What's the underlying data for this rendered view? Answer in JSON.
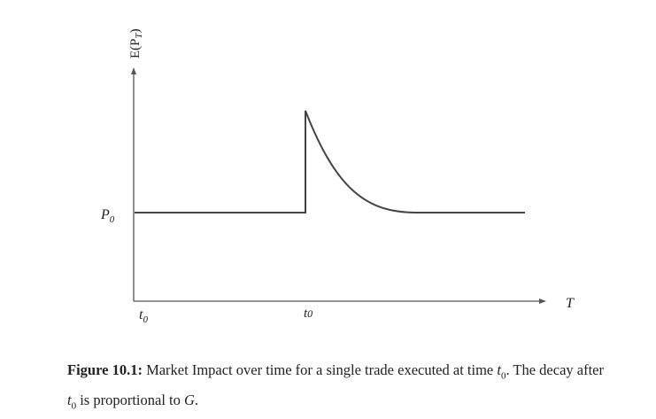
{
  "diagram": {
    "y_axis_label": "E(P",
    "y_axis_label_sub": "T",
    "y_axis_label_close": ")",
    "x_axis_label": "T",
    "p0_label": "P",
    "p0_sub": "0",
    "t0_left_label": "t",
    "t0_left_sub": "0",
    "t0_mid_label": "t",
    "t0_mid_sub": "0"
  },
  "caption": {
    "label": "Figure 10.1:",
    "text_1": "Market Impact over time for a single trade executed at time",
    "var_t": "t",
    "var_t_sub": "0",
    "text_2": ". The decay after",
    "var_t2": "t",
    "var_t2_sub": "0",
    "text_3": "is proportional to",
    "var_g": "G",
    "text_4": "."
  }
}
